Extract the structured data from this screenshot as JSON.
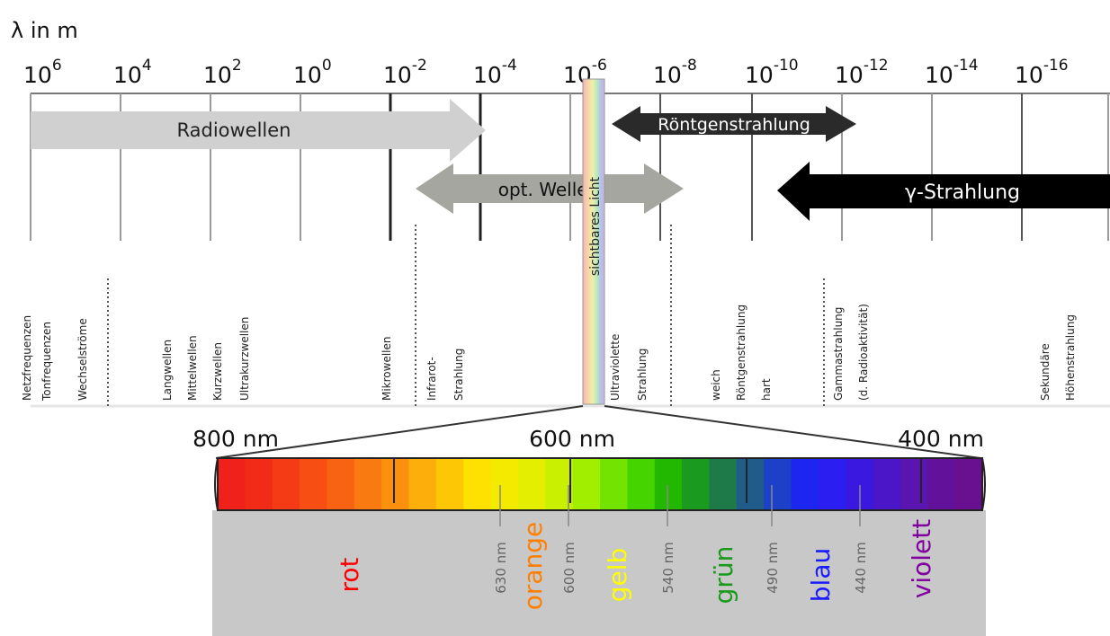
{
  "title": {
    "symbol": "λ",
    "text": "λ in m"
  },
  "scale": {
    "ticks": [
      {
        "base": "10",
        "exp": "6"
      },
      {
        "base": "10",
        "exp": "4"
      },
      {
        "base": "10",
        "exp": "2"
      },
      {
        "base": "10",
        "exp": "0"
      },
      {
        "base": "10",
        "exp": "-2"
      },
      {
        "base": "10",
        "exp": "-4"
      },
      {
        "base": "10",
        "exp": "-6"
      },
      {
        "base": "10",
        "exp": "-8"
      },
      {
        "base": "10",
        "exp": "-10"
      },
      {
        "base": "10",
        "exp": "-12"
      },
      {
        "base": "10",
        "exp": "-14"
      },
      {
        "base": "10",
        "exp": "-16"
      }
    ]
  },
  "bands": {
    "radio": "Radiowellen",
    "xray": "Röntgenstrahlung",
    "optical": "opt. Wellen",
    "gamma": "γ-Strahlung",
    "visible": "sichtbares Licht"
  },
  "regions": [
    "Netzfrequenzen",
    "Tonfrequenzen",
    "Wechselströme",
    "Langwellen",
    "Mittelwellen",
    "Kurzwellen",
    "Ultrakurzwellen",
    "Mikrowellen",
    "Infrarot-",
    "Strahlung",
    "Ultraviolette",
    "Strahlung",
    "weich",
    "Röntgenstrahlung",
    "hart",
    "Gammastrahlung",
    "(d. Radioaktivität)",
    "Sekundäre",
    "Höhenstrahlung"
  ],
  "spectrum": {
    "labels": [
      "800 nm",
      "600 nm",
      "400 nm"
    ],
    "colors": [
      "#f0201a",
      "#f22a18",
      "#f53a16",
      "#f74e14",
      "#f76312",
      "#f97a10",
      "#fa900e",
      "#fcae0a",
      "#fdc705",
      "#fee001",
      "#f4ea00",
      "#e4ee00",
      "#c8f000",
      "#a2ee00",
      "#72e400",
      "#46d400",
      "#22b800",
      "#1a9a1e",
      "#1f7a4a",
      "#1f5c8a",
      "#1d40c8",
      "#1d26f0",
      "#2a1ef0",
      "#3a18e0",
      "#4a16c8",
      "#5a14b0",
      "#62129a",
      "#681090"
    ],
    "colors_note": ""
  },
  "colors": [
    {
      "name": "rot",
      "color": "#ff0000"
    },
    {
      "name": "orange",
      "color": "#ff8000"
    },
    {
      "name": "gelb",
      "color": "#ffff00"
    },
    {
      "name": "grün",
      "color": "#1a9a1a"
    },
    {
      "name": "blau",
      "color": "#1a1aff"
    },
    {
      "name": "violett",
      "color": "#8000a0"
    }
  ],
  "boundaries": [
    "630 nm",
    "600 nm",
    "540 nm",
    "490 nm",
    "440 nm"
  ]
}
